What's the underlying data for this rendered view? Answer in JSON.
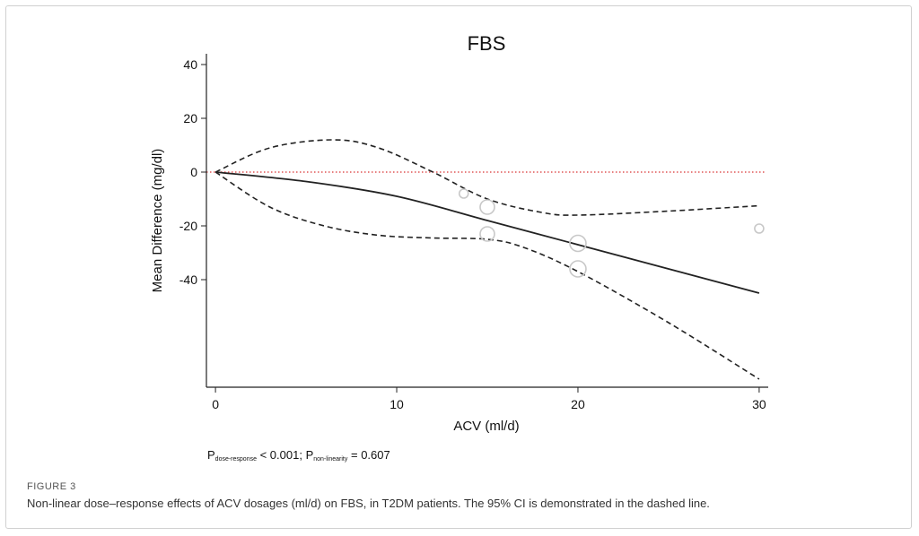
{
  "figure": {
    "label": "FIGURE 3",
    "caption": "Non-linear dose–response effects of ACV dosages (ml/d) on FBS, in T2DM patients. The 95% CI is demonstrated in the dashed line.",
    "stats": {
      "p_prefix": "P",
      "dose_response_sub": "dose-response",
      "dose_response_value": " < 0.001; ",
      "nonlinearity_sub": "non-linearity",
      "nonlinearity_value": " = 0.607"
    }
  },
  "chart_data": {
    "type": "line",
    "title": "FBS",
    "xlabel": "ACV (ml/d)",
    "ylabel": "Mean Difference (mg/dl)",
    "xlim": [
      -0.5,
      30.5
    ],
    "ylim": [
      -80,
      44
    ],
    "xticks": [
      0,
      10,
      20,
      30
    ],
    "yticks": [
      40,
      20,
      0,
      -20,
      -40
    ],
    "reference_line": {
      "y": 0,
      "color": "#e05555",
      "style": "dotted"
    },
    "series": [
      {
        "role": "estimate",
        "style": "solid",
        "color": "#222222",
        "x": [
          0,
          5,
          10,
          15,
          20,
          25,
          30
        ],
        "y": [
          0,
          -3.5,
          -9,
          -18,
          -27,
          -36,
          -45
        ]
      },
      {
        "role": "upper-ci",
        "style": "dashed",
        "color": "#222222",
        "x": [
          0,
          3,
          6.5,
          9,
          12,
          15,
          18,
          20,
          25,
          30
        ],
        "y": [
          0,
          9,
          12,
          9,
          0,
          -10,
          -15,
          -16,
          -14.5,
          -12.5
        ]
      },
      {
        "role": "lower-ci",
        "style": "dashed",
        "color": "#222222",
        "x": [
          0,
          3,
          6,
          9,
          12,
          15,
          17,
          20,
          25,
          30
        ],
        "y": [
          0,
          -13,
          -20,
          -23.5,
          -24.5,
          -25,
          -28,
          -37,
          -56,
          -77
        ]
      }
    ],
    "points": [
      {
        "x": 13.7,
        "y": -8,
        "size": 5
      },
      {
        "x": 15,
        "y": -13,
        "size": 8
      },
      {
        "x": 15,
        "y": -23,
        "size": 8
      },
      {
        "x": 20,
        "y": -26.5,
        "size": 9
      },
      {
        "x": 20,
        "y": -36,
        "size": 9
      },
      {
        "x": 30,
        "y": -21,
        "size": 5
      }
    ]
  }
}
